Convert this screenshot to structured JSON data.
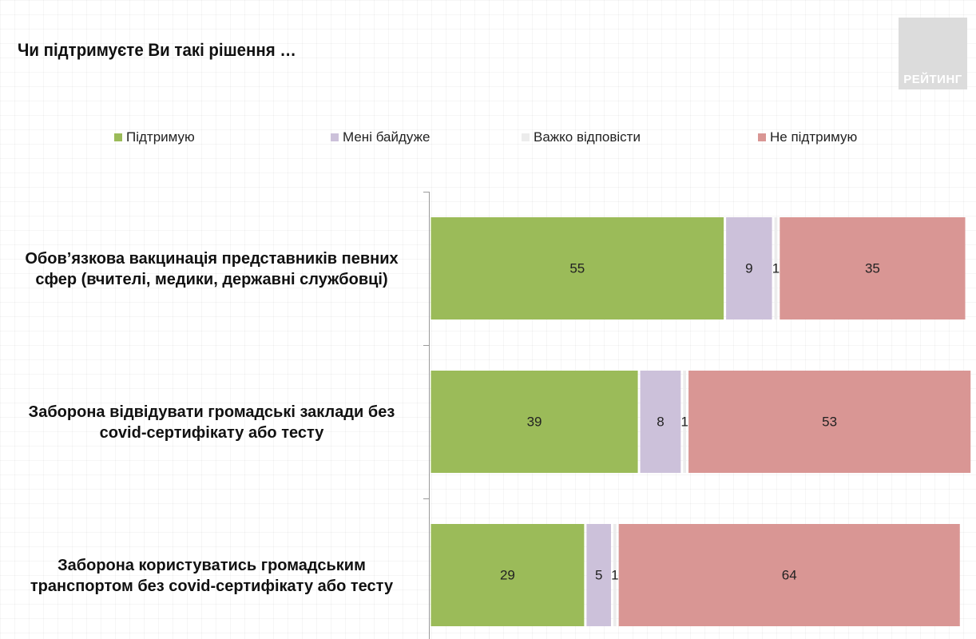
{
  "chart_data": {
    "type": "bar",
    "orientation": "horizontal",
    "stacked": true,
    "title": "Чи підтримуєте Ви такі рішення …",
    "categories": [
      "Обов’язкова вакцинація представників певних сфер (вчителі, медики, державні службовці)",
      "Заборона відвідувати громадські заклади без covid-сертифікату або тесту",
      "Заборона користуватись громадським транспортом без covid-сертифікату або тесту"
    ],
    "series": [
      {
        "name": "Підтримую",
        "color": "#9bbb59",
        "values": [
          55,
          39,
          29
        ]
      },
      {
        "name": "Мені байдуже",
        "color": "#ccc1da",
        "values": [
          9,
          8,
          5
        ]
      },
      {
        "name": "Важко відповісти",
        "color": "#ececec",
        "values": [
          1,
          1,
          1
        ]
      },
      {
        "name": "Не підтримую",
        "color": "#d99694",
        "values": [
          35,
          53,
          64
        ]
      }
    ],
    "xlim": [
      0,
      100
    ],
    "legend": "top",
    "grid": false
  },
  "logo_text": "РЕЙТИНГ"
}
